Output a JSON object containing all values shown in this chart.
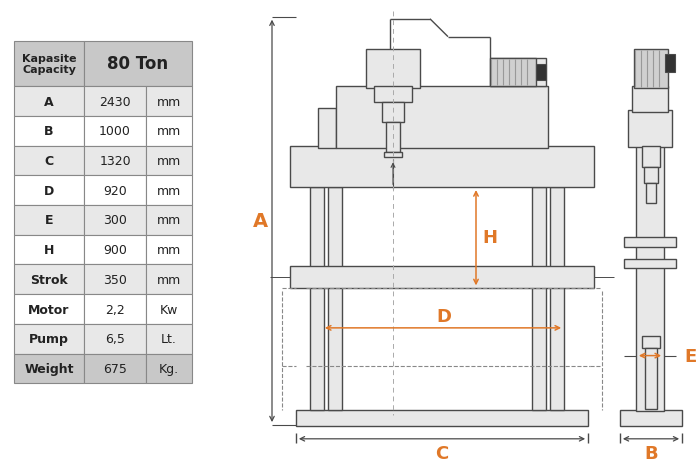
{
  "table_header_left": "Kapasite\nCapacity",
  "table_header_right": "80 Ton",
  "table_rows": [
    [
      "A",
      "2430",
      "mm"
    ],
    [
      "B",
      "1000",
      "mm"
    ],
    [
      "C",
      "1320",
      "mm"
    ],
    [
      "D",
      "920",
      "mm"
    ],
    [
      "E",
      "300",
      "mm"
    ],
    [
      "H",
      "900",
      "mm"
    ],
    [
      "Strok",
      "350",
      "mm"
    ],
    [
      "Motor",
      "2,2",
      "Kw"
    ],
    [
      "Pump",
      "6,5",
      "Lt."
    ],
    [
      "Weight",
      "675",
      "Kg."
    ]
  ],
  "header_bg": "#c8c8c8",
  "row_bg_odd": "#e8e8e8",
  "row_bg_even": "#ffffff",
  "weight_bg": "#c8c8c8",
  "border_color": "#888888",
  "orange_color": "#e07828",
  "line_color": "#4a4a4a",
  "fill_color": "#e8e8e8",
  "fill_dark": "#cccccc",
  "bg_color": "#ffffff"
}
